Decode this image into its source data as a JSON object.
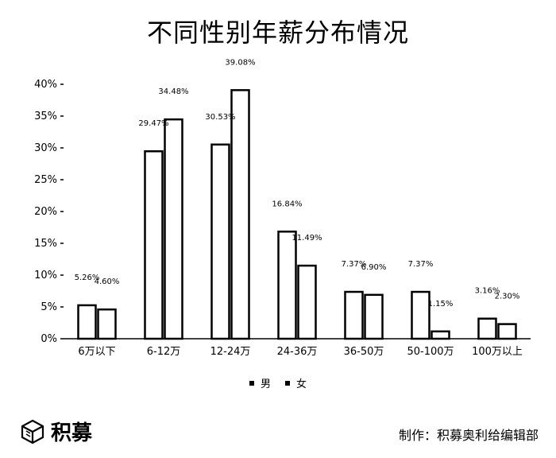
{
  "title": "不同性别年薪分布情况",
  "legend": [
    "男",
    "女"
  ],
  "brand": {
    "name": "积募",
    "logo_icon": "cube-logo-icon"
  },
  "credit": "制作：积募奥利给编辑部",
  "chart_data": {
    "type": "bar",
    "title": "不同性别年薪分布情况",
    "xlabel": "",
    "ylabel": "",
    "ylim": [
      0,
      40
    ],
    "yticks": [
      "0%",
      "5%",
      "10%",
      "15%",
      "20%",
      "25%",
      "30%",
      "35%",
      "40%"
    ],
    "categories": [
      "6万以下",
      "6-12万",
      "12-24万",
      "24-36万",
      "36-50万",
      "50-100万",
      "100万以上"
    ],
    "series": [
      {
        "name": "男",
        "values": [
          5.26,
          29.47,
          30.53,
          16.84,
          7.37,
          7.37,
          3.16
        ],
        "labels": [
          "5.26%",
          "29.47%",
          "30.53%",
          "16.84%",
          "7.37%",
          "7.37%",
          "3.16%"
        ]
      },
      {
        "name": "女",
        "values": [
          4.6,
          34.48,
          39.08,
          11.49,
          6.9,
          1.15,
          2.3
        ],
        "labels": [
          "4.60%",
          "34.48%",
          "39.08%",
          "11.49%",
          "6.90%",
          "1.15%",
          "2.30%"
        ]
      }
    ],
    "grid": false,
    "legend_position": "bottom"
  }
}
